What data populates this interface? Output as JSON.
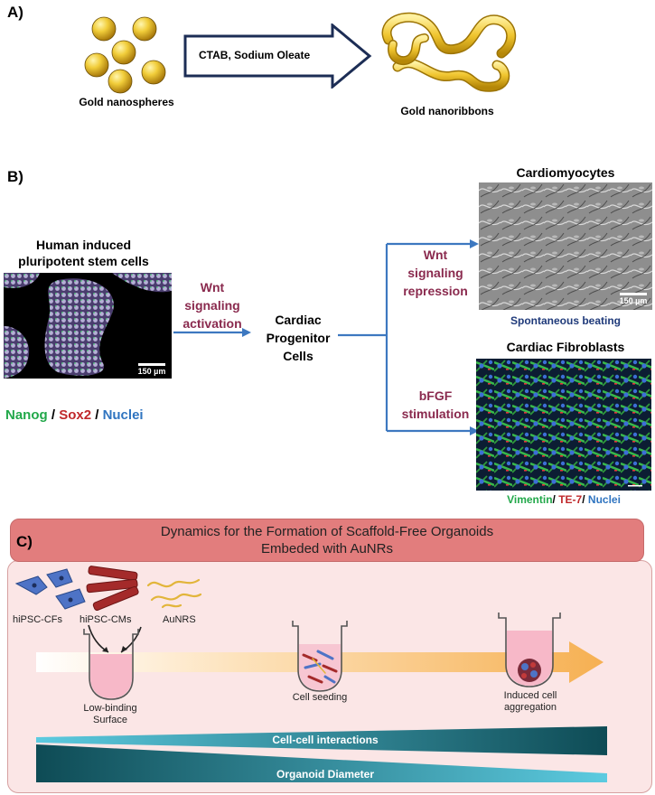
{
  "panel_a": {
    "label": "A)",
    "spheres_caption": "Gold nanospheres",
    "arrow_text": "CTAB, Sodium Oleate",
    "ribbons_caption": "Gold nanoribbons"
  },
  "panel_b": {
    "label": "B)",
    "hipsc_title_line1": "Human induced",
    "hipsc_title_line2": "pluripotent stem cells",
    "hipsc_scale": "150 µm",
    "stain_nanog": "Nanog",
    "stain_sep1": " / ",
    "stain_sox2": "Sox2",
    "stain_sep2": " / ",
    "stain_nuclei": "Nuclei",
    "wnt_act_line1": "Wnt",
    "wnt_act_line2": "signaling",
    "wnt_act_line3": "activation",
    "cpc_line1": "Cardiac",
    "cpc_line2": "Progenitor",
    "cpc_line3": "Cells",
    "wnt_rep_line1": "Wnt",
    "wnt_rep_line2": "signaling",
    "wnt_rep_line3": "repression",
    "bfgf_line1": "bFGF",
    "bfgf_line2": "stimulation",
    "cm_title": "Cardiomyocytes",
    "cm_scale": "150 µm",
    "cm_caption": "Spontaneous  beating",
    "cf_title": "Cardiac Fibroblasts",
    "cf_stain_vim": "Vimentin",
    "cf_sep1": "/ ",
    "cf_stain_te7": "TE-7",
    "cf_sep2": "/ ",
    "cf_stain_nuclei": "Nuclei"
  },
  "panel_c": {
    "label": "C)",
    "title_line1": "Dynamics for the Formation of Scaffold-Free Organoids",
    "title_line2": "Embeded with AuNRs",
    "cf_label": "hiPSC-CFs",
    "cm_label": "hiPSC-CMs",
    "aunr_label": "AuNRS",
    "step1_line1": "Low-binding",
    "step1_line2": "Surface",
    "step2": "Cell seeding",
    "step3_line1": "Induced cell",
    "step3_line2": "aggregation",
    "bar1": "Cell-cell interactions",
    "bar2": "Organoid Diameter"
  },
  "colors": {
    "gold": "#e8c23a",
    "maroon": "#8a2a4e",
    "arrow_blue": "#3d78c0",
    "teal_dark": "#0f4f5a",
    "teal_light": "#4dc3d6",
    "banner": "#e27d7d",
    "orange_arrow": "#f6b557"
  }
}
